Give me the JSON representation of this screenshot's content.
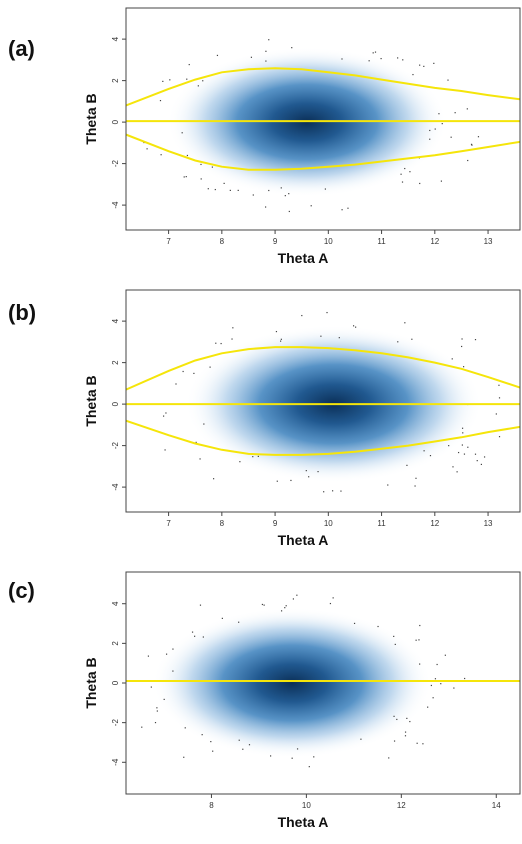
{
  "chart_data": [
    {
      "type": "scatter",
      "panel_label": "(a)",
      "xlabel": "Theta A",
      "ylabel": "Theta B",
      "xlim": [
        6.2,
        13.6
      ],
      "ylim": [
        -5.2,
        5.5
      ],
      "x_ticks": [
        7,
        8,
        9,
        10,
        11,
        12,
        13
      ],
      "y_ticks": [
        -4,
        -2,
        0,
        2,
        4
      ],
      "density": {
        "center": [
          9.6,
          0.0
        ],
        "spread_x": 1.7,
        "spread_y": 1.9
      },
      "series": [
        {
          "role": "upper-bound",
          "x": [
            6.2,
            7.0,
            7.5,
            8.0,
            8.5,
            9.0,
            9.5,
            10.0,
            10.5,
            11.0,
            11.5,
            12.0,
            12.5,
            13.0,
            13.6
          ],
          "y": [
            0.8,
            1.6,
            2.05,
            2.4,
            2.55,
            2.6,
            2.55,
            2.4,
            2.25,
            2.05,
            1.85,
            1.65,
            1.5,
            1.3,
            1.1
          ]
        },
        {
          "role": "center-line",
          "x": [
            6.2,
            13.6
          ],
          "y": [
            0.05,
            0.05
          ]
        },
        {
          "role": "lower-bound",
          "x": [
            6.2,
            7.0,
            7.5,
            8.0,
            8.5,
            9.0,
            9.5,
            10.0,
            10.5,
            11.0,
            11.5,
            12.0,
            12.5,
            13.0,
            13.6
          ],
          "y": [
            -0.6,
            -1.4,
            -1.85,
            -2.15,
            -2.3,
            -2.3,
            -2.25,
            -2.15,
            -2.05,
            -1.9,
            -1.75,
            -1.6,
            -1.4,
            -1.2,
            -0.95
          ]
        }
      ]
    },
    {
      "type": "scatter",
      "panel_label": "(b)",
      "xlabel": "Theta A",
      "ylabel": "Theta B",
      "xlim": [
        6.2,
        13.6
      ],
      "ylim": [
        -5.2,
        5.5
      ],
      "x_ticks": [
        7,
        8,
        9,
        10,
        11,
        12,
        13
      ],
      "y_ticks": [
        -4,
        -2,
        0,
        2,
        4
      ],
      "density": {
        "center": [
          10.1,
          0.0
        ],
        "spread_x": 1.8,
        "spread_y": 2.0
      },
      "series": [
        {
          "role": "upper-bound",
          "x": [
            6.2,
            7.0,
            7.5,
            8.0,
            8.5,
            9.0,
            9.5,
            10.0,
            10.5,
            11.0,
            11.5,
            12.0,
            12.5,
            13.0,
            13.6
          ],
          "y": [
            0.7,
            1.6,
            2.1,
            2.45,
            2.65,
            2.75,
            2.75,
            2.7,
            2.6,
            2.45,
            2.25,
            2.0,
            1.7,
            1.3,
            0.8
          ]
        },
        {
          "role": "center-line",
          "x": [
            6.2,
            13.6
          ],
          "y": [
            0.0,
            0.0
          ]
        },
        {
          "role": "lower-bound",
          "x": [
            6.2,
            7.0,
            7.5,
            8.0,
            8.5,
            9.0,
            9.5,
            10.0,
            10.5,
            11.0,
            11.5,
            12.0,
            12.5,
            13.0,
            13.6
          ],
          "y": [
            -0.8,
            -1.5,
            -1.9,
            -2.2,
            -2.4,
            -2.45,
            -2.45,
            -2.4,
            -2.3,
            -2.15,
            -2.0,
            -1.8,
            -1.6,
            -1.35,
            -1.1
          ]
        }
      ]
    },
    {
      "type": "scatter",
      "panel_label": "(c)",
      "xlabel": "Theta A",
      "ylabel": "Theta B",
      "xlim": [
        6.2,
        14.5
      ],
      "ylim": [
        -5.6,
        5.6
      ],
      "x_ticks": [
        8,
        10,
        12,
        14
      ],
      "y_ticks": [
        -4,
        -2,
        0,
        2,
        4
      ],
      "density": {
        "center": [
          9.7,
          0.0
        ],
        "spread_x": 1.9,
        "spread_y": 2.0
      },
      "series": [
        {
          "role": "center-line",
          "x": [
            6.2,
            14.5
          ],
          "y": [
            0.1,
            0.1
          ]
        }
      ]
    }
  ]
}
